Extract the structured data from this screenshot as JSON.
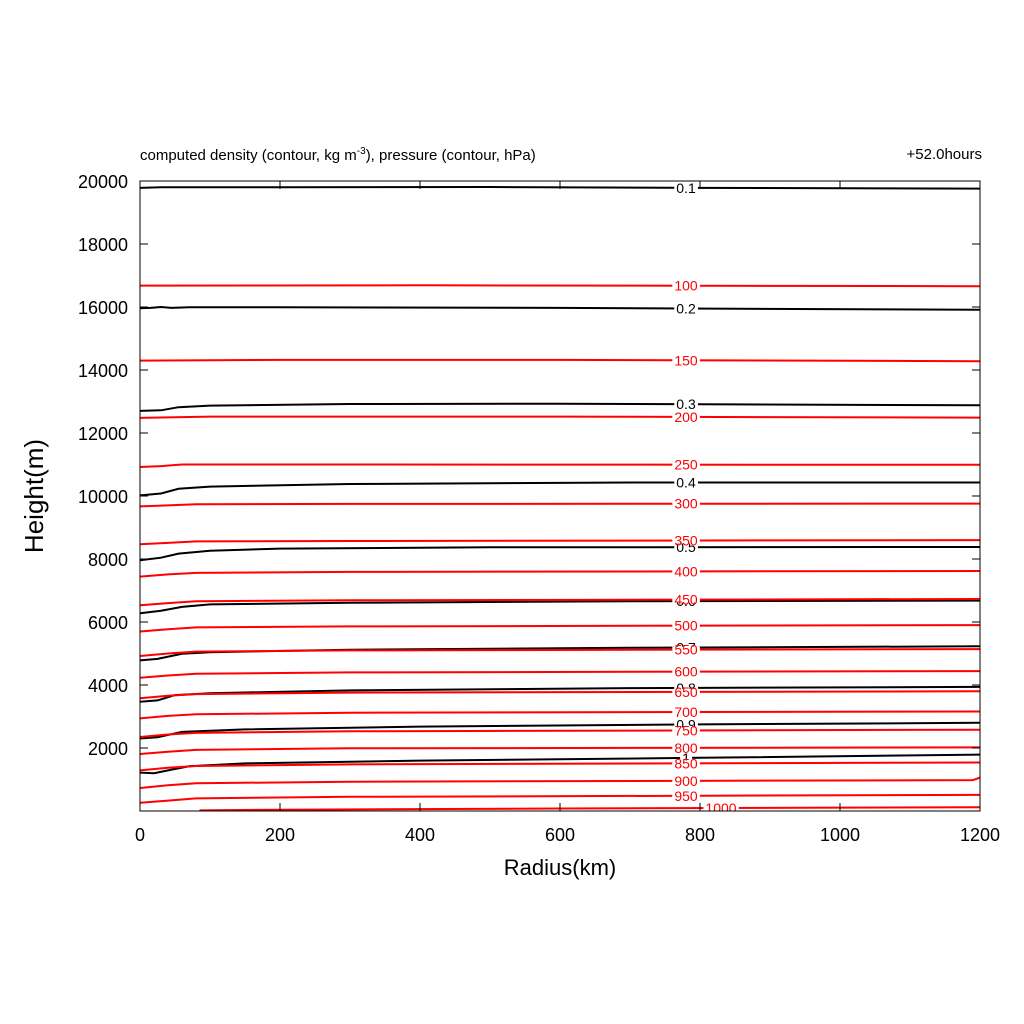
{
  "title": {
    "prefix": "computed density (contour, kg m",
    "exponent": "-3",
    "suffix": "), pressure (contour, hPa)",
    "time_label": "+52.0hours"
  },
  "chart_data": {
    "type": "line",
    "xlabel": "Radius(km)",
    "ylabel": "Height(m)",
    "xlim": [
      0,
      1200
    ],
    "ylim": [
      0,
      20000
    ],
    "xticks": [
      0,
      200,
      400,
      600,
      800,
      1000,
      1200
    ],
    "yticks": [
      2000,
      4000,
      6000,
      8000,
      10000,
      12000,
      14000,
      16000,
      18000,
      20000
    ],
    "label_x": 780,
    "colors": {
      "density": "#000000",
      "pressure": "#ff0000"
    },
    "density_series": [
      {
        "name": "0.1",
        "points": [
          [
            0,
            19780
          ],
          [
            30,
            19800
          ],
          [
            200,
            19800
          ],
          [
            500,
            19810
          ],
          [
            800,
            19780
          ],
          [
            1200,
            19760
          ]
        ]
      },
      {
        "name": "0.2",
        "points": [
          [
            0,
            15960
          ],
          [
            15,
            15970
          ],
          [
            30,
            16000
          ],
          [
            45,
            15970
          ],
          [
            70,
            15990
          ],
          [
            200,
            15990
          ],
          [
            600,
            15970
          ],
          [
            1200,
            15910
          ]
        ]
      },
      {
        "name": "0.3",
        "points": [
          [
            0,
            12700
          ],
          [
            30,
            12720
          ],
          [
            55,
            12820
          ],
          [
            100,
            12870
          ],
          [
            300,
            12920
          ],
          [
            600,
            12930
          ],
          [
            1200,
            12880
          ]
        ]
      },
      {
        "name": "0.4",
        "points": [
          [
            0,
            10020
          ],
          [
            30,
            10080
          ],
          [
            55,
            10230
          ],
          [
            100,
            10300
          ],
          [
            300,
            10380
          ],
          [
            700,
            10430
          ],
          [
            1200,
            10430
          ]
        ]
      },
      {
        "name": "0.5",
        "points": [
          [
            0,
            7960
          ],
          [
            30,
            8040
          ],
          [
            55,
            8170
          ],
          [
            100,
            8260
          ],
          [
            200,
            8330
          ],
          [
            500,
            8370
          ],
          [
            1200,
            8380
          ]
        ]
      },
      {
        "name": "0.6",
        "points": [
          [
            0,
            6280
          ],
          [
            30,
            6360
          ],
          [
            60,
            6480
          ],
          [
            100,
            6560
          ],
          [
            300,
            6610
          ],
          [
            700,
            6660
          ],
          [
            1200,
            6680
          ]
        ]
      },
      {
        "name": "0.7",
        "points": [
          [
            0,
            4780
          ],
          [
            25,
            4830
          ],
          [
            60,
            4990
          ],
          [
            100,
            5040
          ],
          [
            300,
            5120
          ],
          [
            700,
            5180
          ],
          [
            1200,
            5230
          ]
        ]
      },
      {
        "name": "0.8",
        "points": [
          [
            0,
            3470
          ],
          [
            25,
            3510
          ],
          [
            50,
            3680
          ],
          [
            100,
            3740
          ],
          [
            300,
            3830
          ],
          [
            700,
            3900
          ],
          [
            1200,
            3940
          ]
        ]
      },
      {
        "name": "0.9",
        "points": [
          [
            0,
            2300
          ],
          [
            25,
            2340
          ],
          [
            60,
            2510
          ],
          [
            150,
            2590
          ],
          [
            400,
            2680
          ],
          [
            800,
            2750
          ],
          [
            1200,
            2800
          ]
        ]
      },
      {
        "name": "1",
        "points": [
          [
            0,
            1220
          ],
          [
            20,
            1200
          ],
          [
            40,
            1290
          ],
          [
            70,
            1420
          ],
          [
            150,
            1510
          ],
          [
            400,
            1600
          ],
          [
            800,
            1690
          ],
          [
            1200,
            1790
          ]
        ]
      }
    ],
    "pressure_series": [
      {
        "name": "100",
        "points": [
          [
            0,
            16680
          ],
          [
            400,
            16690
          ],
          [
            1200,
            16660
          ]
        ]
      },
      {
        "name": "150",
        "points": [
          [
            0,
            14300
          ],
          [
            200,
            14320
          ],
          [
            600,
            14320
          ],
          [
            1200,
            14280
          ]
        ]
      },
      {
        "name": "200",
        "points": [
          [
            0,
            12480
          ],
          [
            100,
            12520
          ],
          [
            600,
            12520
          ],
          [
            1200,
            12490
          ]
        ]
      },
      {
        "name": "250",
        "points": [
          [
            0,
            10920
          ],
          [
            30,
            10950
          ],
          [
            60,
            11000
          ],
          [
            300,
            11000
          ],
          [
            1200,
            10990
          ]
        ]
      },
      {
        "name": "300",
        "points": [
          [
            0,
            9670
          ],
          [
            40,
            9700
          ],
          [
            80,
            9740
          ],
          [
            300,
            9750
          ],
          [
            1200,
            9760
          ]
        ]
      },
      {
        "name": "350",
        "points": [
          [
            0,
            8470
          ],
          [
            40,
            8510
          ],
          [
            80,
            8560
          ],
          [
            300,
            8570
          ],
          [
            1200,
            8600
          ]
        ]
      },
      {
        "name": "400",
        "points": [
          [
            0,
            7440
          ],
          [
            40,
            7510
          ],
          [
            80,
            7560
          ],
          [
            300,
            7590
          ],
          [
            1200,
            7620
          ]
        ]
      },
      {
        "name": "450",
        "points": [
          [
            0,
            6530
          ],
          [
            40,
            6600
          ],
          [
            80,
            6660
          ],
          [
            300,
            6690
          ],
          [
            1200,
            6730
          ]
        ]
      },
      {
        "name": "500",
        "points": [
          [
            0,
            5700
          ],
          [
            40,
            5770
          ],
          [
            80,
            5830
          ],
          [
            300,
            5860
          ],
          [
            1200,
            5900
          ]
        ]
      },
      {
        "name": "550",
        "points": [
          [
            0,
            4920
          ],
          [
            40,
            5000
          ],
          [
            80,
            5060
          ],
          [
            300,
            5100
          ],
          [
            1200,
            5140
          ]
        ]
      },
      {
        "name": "600",
        "points": [
          [
            0,
            4230
          ],
          [
            40,
            4300
          ],
          [
            80,
            4360
          ],
          [
            300,
            4400
          ],
          [
            1200,
            4440
          ]
        ]
      },
      {
        "name": "650",
        "points": [
          [
            0,
            3580
          ],
          [
            40,
            3660
          ],
          [
            80,
            3710
          ],
          [
            300,
            3760
          ],
          [
            1200,
            3800
          ]
        ]
      },
      {
        "name": "700",
        "points": [
          [
            0,
            2940
          ],
          [
            40,
            3020
          ],
          [
            80,
            3070
          ],
          [
            300,
            3120
          ],
          [
            1200,
            3160
          ]
        ]
      },
      {
        "name": "750",
        "points": [
          [
            0,
            2350
          ],
          [
            40,
            2430
          ],
          [
            80,
            2480
          ],
          [
            300,
            2530
          ],
          [
            1200,
            2580
          ]
        ]
      },
      {
        "name": "800",
        "points": [
          [
            0,
            1810
          ],
          [
            40,
            1880
          ],
          [
            80,
            1940
          ],
          [
            300,
            1990
          ],
          [
            1200,
            2020
          ]
        ]
      },
      {
        "name": "850",
        "points": [
          [
            0,
            1290
          ],
          [
            40,
            1370
          ],
          [
            80,
            1430
          ],
          [
            300,
            1480
          ],
          [
            1200,
            1540
          ]
        ]
      },
      {
        "name": "900",
        "points": [
          [
            0,
            730
          ],
          [
            40,
            820
          ],
          [
            80,
            880
          ],
          [
            300,
            930
          ],
          [
            1190,
            980
          ],
          [
            1200,
            1060
          ]
        ]
      },
      {
        "name": "950",
        "points": [
          [
            0,
            260
          ],
          [
            40,
            330
          ],
          [
            80,
            400
          ],
          [
            300,
            450
          ],
          [
            1200,
            510
          ]
        ]
      },
      {
        "name": "1000",
        "points": [
          [
            85,
            20
          ],
          [
            200,
            40
          ],
          [
            600,
            80
          ],
          [
            1200,
            120
          ]
        ]
      }
    ]
  }
}
